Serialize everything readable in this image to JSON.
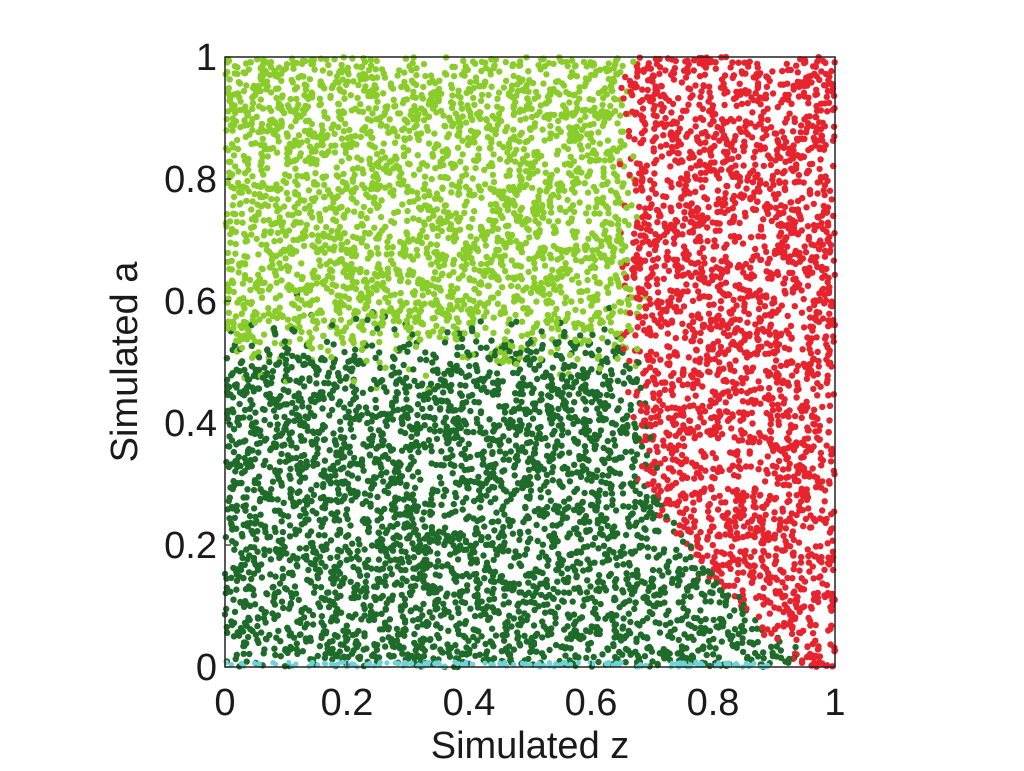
{
  "chart_data": {
    "type": "scatter",
    "title": "",
    "xlabel": "Simulated z",
    "ylabel": "Simulated a",
    "xlim": [
      0,
      1
    ],
    "ylim": [
      0,
      1
    ],
    "xticks": [
      "0",
      "0.2",
      "0.4",
      "0.6",
      "0.8",
      "1"
    ],
    "yticks": [
      "0",
      "0.2",
      "0.4",
      "0.6",
      "0.8",
      "1"
    ],
    "grid": false,
    "legend": "none",
    "series": [
      {
        "color": "#8acd2a",
        "region": "z below about 0.66-0.72 and a above about 0.5-0.6"
      },
      {
        "color": "#1f6b2a",
        "region": "z below about 0.68, a below about 0.6; boundary curves to z about 0.95 as a approaches 0"
      },
      {
        "color": "#e7242e",
        "region": "z above about 0.65-0.72 at high a; boundary curves toward z about 0.95 as a approaches 0"
      },
      {
        "color": "#6cd3d8",
        "region": "thin band along a about 0.0-0.01 for z 0 to about 0.9"
      }
    ]
  }
}
